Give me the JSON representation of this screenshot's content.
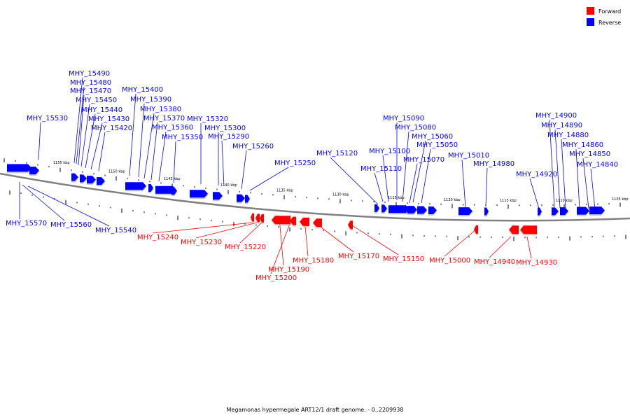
{
  "legend": {
    "forward_label": "Forward",
    "reverse_label": "Reverse",
    "forward_color": "#ff0000",
    "reverse_color": "#0000ff"
  },
  "caption": "Megamonas hypermegale ART12/1 draft genome. - 0..2209938",
  "track": {
    "color": "#808080",
    "tick_labels": [
      "1155 kbp",
      "1150 kbp",
      "1145 kbp",
      "1140 kbp",
      "1135 kbp",
      "1130 kbp",
      "1125 kbp",
      "1120 kbp",
      "1115 kbp",
      "1110 kbp",
      "1105 kbp"
    ]
  },
  "reverse_genes": [
    "MHY_15490",
    "MHY_15480",
    "MHY_15470",
    "MHY_15450",
    "MHY_15440",
    "MHY_15430",
    "MHY_15420",
    "MHY_15400",
    "MHY_15390",
    "MHY_15380",
    "MHY_15370",
    "MHY_15360",
    "MHY_15350",
    "MHY_15530",
    "MHY_15320",
    "MHY_15300",
    "MHY_15290",
    "MHY_15260",
    "MHY_15250",
    "MHY_15120",
    "MHY_15090",
    "MHY_15080",
    "MHY_15060",
    "MHY_15050",
    "MHY_15100",
    "MHY_15070",
    "MHY_15110",
    "MHY_15010",
    "MHY_14980",
    "MHY_14900",
    "MHY_14890",
    "MHY_14880",
    "MHY_14920",
    "MHY_14860",
    "MHY_14850",
    "MHY_14840",
    "MHY_15570",
    "MHY_15560",
    "MHY_15540"
  ],
  "forward_genes": [
    "MHY_15240",
    "MHY_15230",
    "MHY_15220",
    "MHY_15190",
    "MHY_15200",
    "MHY_15180",
    "MHY_15170",
    "MHY_15150",
    "MHY_15000",
    "MHY_14940",
    "MHY_14930"
  ]
}
